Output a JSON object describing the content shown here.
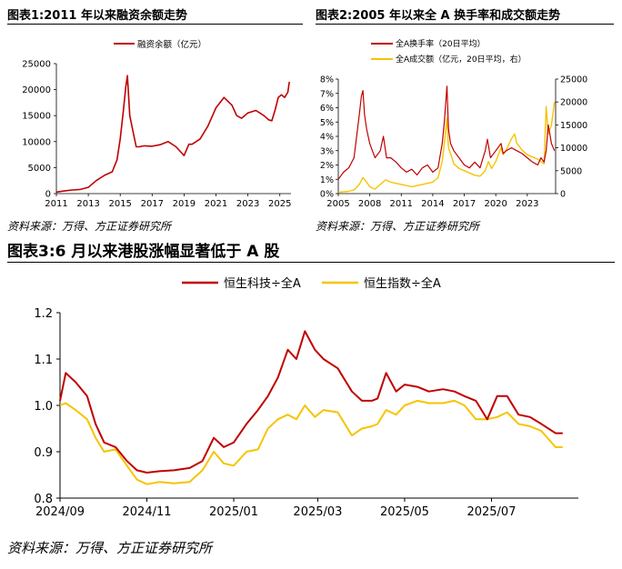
{
  "colors": {
    "red": "#c00000",
    "yellow": "#f5c400",
    "axis": "#000000"
  },
  "figure1": {
    "title": "图表1:2011 年以来融资余额走势",
    "source": "资料来源：万得、方正证券研究所"
  },
  "figure2": {
    "title": "图表2:2005 年以来全 A 换手率和成交额走势",
    "source": "资料来源：万得、方正证券研究所"
  },
  "figure3": {
    "title": "图表3:6 月以来港股涨幅显著低于 A 股",
    "source": "资料来源：万得、方正证券研究所"
  },
  "chart_data": [
    {
      "type": "line",
      "legend_position": "top",
      "ylim": [
        0,
        25000
      ],
      "yticks": [
        "0",
        "5000",
        "10000",
        "15000",
        "20000",
        "25000"
      ],
      "xlim": [
        2011,
        2025.7
      ],
      "xticks": [
        "2011",
        "2013",
        "2015",
        "2017",
        "2019",
        "2021",
        "2023",
        "2025"
      ],
      "series": [
        {
          "name": "融资余额（亿元）",
          "color": "#c00000",
          "x": [
            2011.0,
            2011.5,
            2012.0,
            2012.5,
            2013.0,
            2013.5,
            2014.0,
            2014.5,
            2014.8,
            2015.0,
            2015.2,
            2015.35,
            2015.45,
            2015.6,
            2015.8,
            2016.0,
            2016.2,
            2016.5,
            2017.0,
            2017.5,
            2018.0,
            2018.5,
            2019.0,
            2019.3,
            2019.5,
            2020.0,
            2020.5,
            2021.0,
            2021.5,
            2022.0,
            2022.3,
            2022.6,
            2023.0,
            2023.5,
            2024.0,
            2024.3,
            2024.5,
            2024.7,
            2024.9,
            2025.1,
            2025.3,
            2025.5,
            2025.6
          ],
          "y": [
            300,
            500,
            700,
            800,
            1200,
            2500,
            3500,
            4200,
            6500,
            10500,
            16000,
            20500,
            22700,
            15000,
            12000,
            9000,
            9000,
            9200,
            9100,
            9400,
            10000,
            9000,
            7300,
            9500,
            9500,
            10500,
            13000,
            16500,
            18500,
            17000,
            15000,
            14500,
            15500,
            16000,
            15000,
            14200,
            14000,
            16000,
            18500,
            19000,
            18500,
            19500,
            21500
          ]
        }
      ]
    },
    {
      "type": "line",
      "legend_position": "top-left",
      "ylim_left": [
        0,
        0.08
      ],
      "yticks_left": [
        "0%",
        "1%",
        "2%",
        "3%",
        "4%",
        "5%",
        "6%",
        "7%",
        "8%"
      ],
      "ylim_right": [
        0,
        25000
      ],
      "yticks_right": [
        "0",
        "5000",
        "10000",
        "15000",
        "20000",
        "25000"
      ],
      "xlim": [
        2005,
        2025.7
      ],
      "xticks": [
        "2005",
        "2008",
        "2011",
        "2014",
        "2017",
        "2020",
        "2023"
      ],
      "series": [
        {
          "name": "全A换手率（20日平均）",
          "color": "#c00000",
          "axis": "left",
          "x": [
            2005.0,
            2005.5,
            2006.0,
            2006.5,
            2007.0,
            2007.2,
            2007.35,
            2007.5,
            2007.7,
            2008.0,
            2008.5,
            2009.0,
            2009.3,
            2009.6,
            2010.0,
            2010.5,
            2011.0,
            2011.5,
            2012.0,
            2012.5,
            2013.0,
            2013.5,
            2014.0,
            2014.5,
            2014.9,
            2015.1,
            2015.35,
            2015.5,
            2015.7,
            2016.0,
            2016.5,
            2017.0,
            2017.5,
            2018.0,
            2018.5,
            2019.0,
            2019.2,
            2019.5,
            2020.0,
            2020.5,
            2020.7,
            2021.0,
            2021.5,
            2022.0,
            2022.5,
            2023.0,
            2023.5,
            2024.0,
            2024.3,
            2024.6,
            2024.8,
            2025.0,
            2025.3,
            2025.6
          ],
          "y": [
            0.01,
            0.015,
            0.018,
            0.025,
            0.055,
            0.068,
            0.072,
            0.055,
            0.045,
            0.035,
            0.025,
            0.03,
            0.04,
            0.025,
            0.025,
            0.022,
            0.018,
            0.015,
            0.017,
            0.013,
            0.018,
            0.02,
            0.015,
            0.018,
            0.035,
            0.05,
            0.075,
            0.045,
            0.035,
            0.03,
            0.025,
            0.02,
            0.018,
            0.022,
            0.018,
            0.03,
            0.038,
            0.025,
            0.03,
            0.035,
            0.028,
            0.03,
            0.032,
            0.03,
            0.028,
            0.025,
            0.022,
            0.02,
            0.025,
            0.022,
            0.03,
            0.048,
            0.035,
            0.03
          ]
        },
        {
          "name": "全A成交额（亿元，20日平均，右）",
          "color": "#f5c400",
          "axis": "right",
          "x": [
            2005.0,
            2006.0,
            2006.5,
            2007.0,
            2007.35,
            2007.7,
            2008.0,
            2008.5,
            2009.0,
            2009.5,
            2010.0,
            2011.0,
            2012.0,
            2013.0,
            2014.0,
            2014.5,
            2014.9,
            2015.1,
            2015.35,
            2015.5,
            2015.8,
            2016.0,
            2016.5,
            2017.0,
            2018.0,
            2018.5,
            2019.0,
            2019.3,
            2019.6,
            2020.0,
            2020.5,
            2020.7,
            2021.0,
            2021.5,
            2021.8,
            2022.0,
            2022.5,
            2023.0,
            2023.5,
            2024.0,
            2024.3,
            2024.6,
            2024.8,
            2025.0,
            2025.3,
            2025.6
          ],
          "y": [
            300,
            500,
            800,
            2000,
            3500,
            2500,
            1500,
            1000,
            2000,
            3000,
            2500,
            2000,
            1500,
            2000,
            2500,
            3500,
            7000,
            11000,
            16500,
            10000,
            8000,
            6500,
            5500,
            5000,
            4000,
            3800,
            5000,
            7000,
            5500,
            7000,
            10000,
            8500,
            9500,
            12000,
            13000,
            11000,
            9500,
            8500,
            8000,
            7500,
            7000,
            6500,
            19000,
            13000,
            15000,
            20000
          ]
        }
      ]
    },
    {
      "type": "line",
      "legend_position": "top",
      "ylim": [
        0.8,
        1.2
      ],
      "yticks": [
        "0.8",
        "0.9",
        "1.0",
        "1.1",
        "1.2"
      ],
      "xlim": [
        "2024/09",
        "2025/08"
      ],
      "xticks": [
        "2024/09",
        "2024/11",
        "2025/01",
        "2025/03",
        "2025/05",
        "2025/07"
      ],
      "series": [
        {
          "name": "恒生科技÷全A",
          "color": "#c00000",
          "x": [
            "2024-09-01",
            "2024-09-05",
            "2024-09-12",
            "2024-09-20",
            "2024-09-26",
            "2024-10-02",
            "2024-10-10",
            "2024-10-18",
            "2024-10-25",
            "2024-11-01",
            "2024-11-10",
            "2024-11-20",
            "2024-12-01",
            "2024-12-10",
            "2024-12-18",
            "2024-12-25",
            "2025-01-01",
            "2025-01-10",
            "2025-01-18",
            "2025-01-25",
            "2025-02-01",
            "2025-02-08",
            "2025-02-14",
            "2025-02-20",
            "2025-02-27",
            "2025-03-05",
            "2025-03-15",
            "2025-03-25",
            "2025-04-01",
            "2025-04-08",
            "2025-04-12",
            "2025-04-18",
            "2025-04-25",
            "2025-05-01",
            "2025-05-10",
            "2025-05-18",
            "2025-05-28",
            "2025-06-05",
            "2025-06-12",
            "2025-06-20",
            "2025-06-28",
            "2025-07-05",
            "2025-07-12",
            "2025-07-20",
            "2025-07-28",
            "2025-08-05",
            "2025-08-15",
            "2025-08-20"
          ],
          "y": [
            1.01,
            1.07,
            1.05,
            1.02,
            0.96,
            0.92,
            0.91,
            0.88,
            0.86,
            0.855,
            0.858,
            0.86,
            0.865,
            0.88,
            0.93,
            0.91,
            0.92,
            0.96,
            0.99,
            1.02,
            1.06,
            1.12,
            1.1,
            1.16,
            1.12,
            1.1,
            1.08,
            1.03,
            1.01,
            1.01,
            1.015,
            1.07,
            1.03,
            1.045,
            1.04,
            1.03,
            1.035,
            1.03,
            1.02,
            1.01,
            0.97,
            1.02,
            1.02,
            0.98,
            0.975,
            0.96,
            0.94,
            0.94
          ]
        },
        {
          "name": "恒生指数÷全A",
          "color": "#f5c400",
          "x": [
            "2024-09-01",
            "2024-09-05",
            "2024-09-12",
            "2024-09-20",
            "2024-09-26",
            "2024-10-02",
            "2024-10-10",
            "2024-10-18",
            "2024-10-25",
            "2024-11-01",
            "2024-11-10",
            "2024-11-20",
            "2024-12-01",
            "2024-12-10",
            "2024-12-18",
            "2024-12-25",
            "2025-01-01",
            "2025-01-10",
            "2025-01-18",
            "2025-01-25",
            "2025-02-01",
            "2025-02-08",
            "2025-02-14",
            "2025-02-20",
            "2025-02-27",
            "2025-03-05",
            "2025-03-15",
            "2025-03-25",
            "2025-04-01",
            "2025-04-08",
            "2025-04-12",
            "2025-04-18",
            "2025-04-25",
            "2025-05-01",
            "2025-05-10",
            "2025-05-18",
            "2025-05-28",
            "2025-06-05",
            "2025-06-12",
            "2025-06-20",
            "2025-06-28",
            "2025-07-05",
            "2025-07-12",
            "2025-07-20",
            "2025-07-28",
            "2025-08-05",
            "2025-08-15",
            "2025-08-20"
          ],
          "y": [
            1.0,
            1.005,
            0.99,
            0.97,
            0.93,
            0.9,
            0.905,
            0.87,
            0.84,
            0.83,
            0.835,
            0.832,
            0.835,
            0.86,
            0.9,
            0.875,
            0.87,
            0.9,
            0.905,
            0.95,
            0.97,
            0.98,
            0.97,
            1.0,
            0.975,
            0.99,
            0.985,
            0.935,
            0.95,
            0.955,
            0.96,
            0.99,
            0.98,
            1.0,
            1.01,
            1.005,
            1.005,
            1.01,
            1.0,
            0.97,
            0.97,
            0.975,
            0.985,
            0.96,
            0.955,
            0.945,
            0.91,
            0.91
          ]
        }
      ]
    }
  ]
}
